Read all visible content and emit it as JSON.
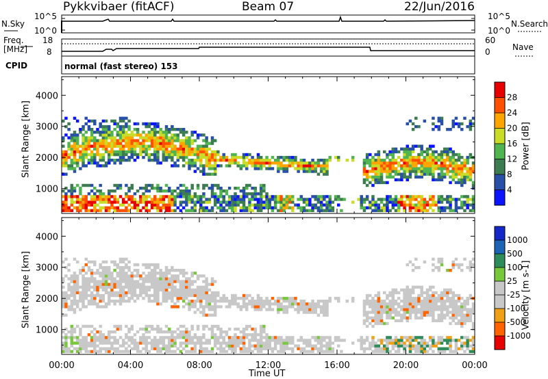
{
  "header": {
    "radar": "Pykkvibaer (fitACF)",
    "beam": "Beam 07",
    "date": "22/Jun/2016"
  },
  "noise_panel": {
    "left_label": "N.Sky",
    "left_ticks": [
      "10^5",
      "10^0"
    ],
    "right_ticks": [
      "10^5",
      "10^0"
    ],
    "right_label": "N.Search"
  },
  "freq_panel": {
    "left_label_line1": "Freq.",
    "left_label_line2": "[MHz]",
    "left_ticks": [
      "18",
      "8"
    ],
    "right_ticks": [
      "60",
      "0"
    ],
    "right_label": "Nave"
  },
  "cpid": {
    "label": "CPID",
    "value": "normal (fast stereo) 153"
  },
  "chart_data": [
    {
      "type": "heatmap",
      "name": "power",
      "ylabel": "Slant Range [km]",
      "xlabel": "",
      "y_ticks": [
        1000,
        2000,
        3000,
        4000
      ],
      "ylim": [
        200,
        4600
      ],
      "x_ticks": [
        "00:00",
        "04:00",
        "08:00",
        "12:00",
        "16:00",
        "20:00",
        "00:00"
      ],
      "xlim_hours": [
        0,
        24
      ],
      "colorbar": {
        "label": "Power [dB]",
        "ticks": [
          "4",
          "8",
          "12",
          "16",
          "20",
          "24",
          "28"
        ],
        "colors": [
          "#0a14ff",
          "#2850a8",
          "#3c7c50",
          "#50b450",
          "#c8dc28",
          "#ffa500",
          "#ff5000",
          "#e60000"
        ]
      },
      "echo_regions": [
        {
          "band": "ionospheric",
          "time_h": [
            0,
            9
          ],
          "range_km": [
            1300,
            3100
          ],
          "level": "medium"
        },
        {
          "band": "ionospheric",
          "time_h": [
            8,
            15.5
          ],
          "range_km": [
            1500,
            2100
          ],
          "level": "medium"
        },
        {
          "band": "ionospheric",
          "time_h": [
            17.5,
            24
          ],
          "range_km": [
            1300,
            2400
          ],
          "level": "medium"
        },
        {
          "band": "near-range",
          "time_h": [
            0,
            6.5
          ],
          "range_km": [
            300,
            700
          ],
          "level": "high"
        }
      ]
    },
    {
      "type": "heatmap",
      "name": "velocity",
      "ylabel": "Slant Range [km]",
      "xlabel": "Time UT",
      "y_ticks": [
        1000,
        2000,
        3000,
        4000
      ],
      "ylim": [
        200,
        4600
      ],
      "x_ticks": [
        "00:00",
        "04:00",
        "08:00",
        "12:00",
        "16:00",
        "20:00",
        "00:00"
      ],
      "xlim_hours": [
        0,
        24
      ],
      "colorbar": {
        "label": "Velocity [m s-1]",
        "ticks": [
          "1000",
          "500",
          "100",
          "25",
          "-25",
          "-100",
          "-500",
          "-1000"
        ],
        "colors": [
          "#1428c8",
          "#1e64b4",
          "#2d8c5a",
          "#78c83c",
          "#c8c8c8",
          "#c8c8c8",
          "#f0a014",
          "#ff6400",
          "#e60000"
        ]
      }
    }
  ]
}
